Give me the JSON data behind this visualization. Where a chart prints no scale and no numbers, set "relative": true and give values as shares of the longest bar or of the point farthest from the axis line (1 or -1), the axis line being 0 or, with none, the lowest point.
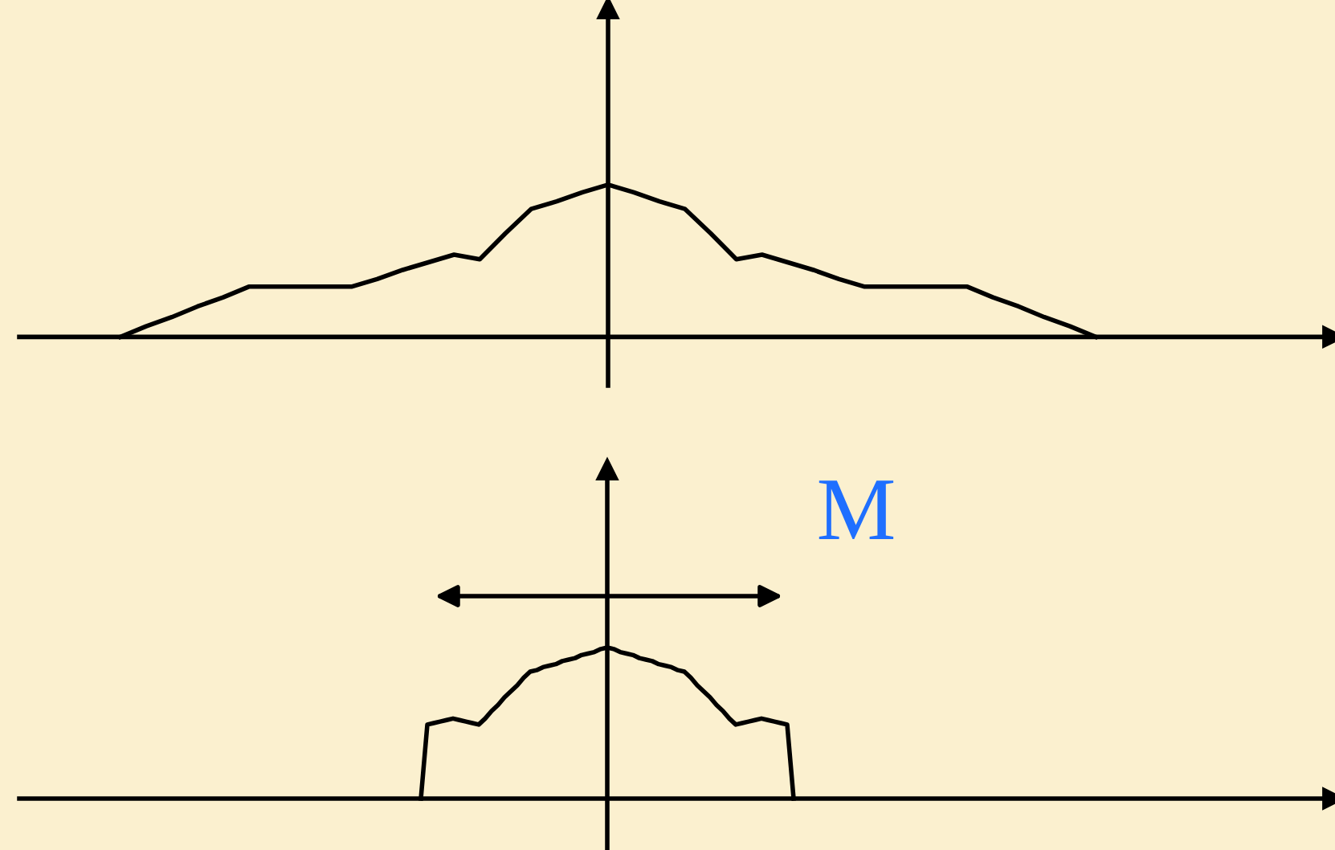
{
  "chart_data": [
    {
      "type": "line",
      "relative": true,
      "color": "#000000",
      "categories": [
        null,
        null,
        null,
        null,
        null,
        null,
        null,
        null,
        null,
        null,
        null,
        null,
        null,
        null,
        null,
        null,
        null,
        null,
        null,
        null,
        null,
        null,
        null,
        null,
        null,
        null,
        null,
        null,
        null,
        null,
        null,
        null,
        null,
        null,
        null,
        null,
        null,
        null,
        null
      ],
      "values": [
        0,
        0.07,
        0.13,
        0.2,
        0.26,
        0.33,
        0.33,
        0.33,
        0.33,
        0.33,
        0.38,
        0.44,
        0.49,
        0.54,
        0.51,
        0.68,
        0.84,
        0.89,
        0.95,
        1,
        0.95,
        0.89,
        0.84,
        0.68,
        0.51,
        0.54,
        0.49,
        0.44,
        0.38,
        0.33,
        0.33,
        0.33,
        0.33,
        0.33,
        0.26,
        0.2,
        0.13,
        0.07,
        0
      ]
    },
    {
      "type": "line",
      "relative": true,
      "color": "#000000",
      "categories": [
        null,
        null,
        null,
        null,
        null,
        null,
        null,
        null,
        null,
        null,
        null,
        null,
        null,
        null,
        null,
        null,
        null,
        null,
        null,
        null,
        null,
        null,
        null,
        null,
        null,
        null,
        null,
        null,
        null,
        null,
        null,
        null,
        null,
        null,
        null,
        null,
        null,
        null,
        null,
        null,
        null,
        null,
        null,
        null,
        null,
        null,
        null,
        null,
        null,
        null,
        null,
        null,
        null,
        null,
        null,
        null,
        null,
        null,
        null
      ],
      "values": [
        0,
        0.49,
        0.5,
        0.51,
        0.52,
        0.53,
        0.52,
        0.51,
        0.5,
        0.49,
        0.53,
        0.58,
        0.62,
        0.67,
        0.71,
        0.75,
        0.8,
        0.84,
        0.85,
        0.87,
        0.88,
        0.89,
        0.91,
        0.92,
        0.93,
        0.95,
        0.96,
        0.97,
        0.99,
        1,
        0.99,
        0.97,
        0.96,
        0.95,
        0.93,
        0.92,
        0.91,
        0.89,
        0.88,
        0.87,
        0.85,
        0.84,
        0.8,
        0.75,
        0.71,
        0.67,
        0.62,
        0.58,
        0.53,
        0.49,
        0.5,
        0.51,
        0.52,
        0.53,
        0.52,
        0.51,
        0.5,
        0.49,
        0
      ],
      "annotations": [
        "M"
      ]
    }
  ]
}
